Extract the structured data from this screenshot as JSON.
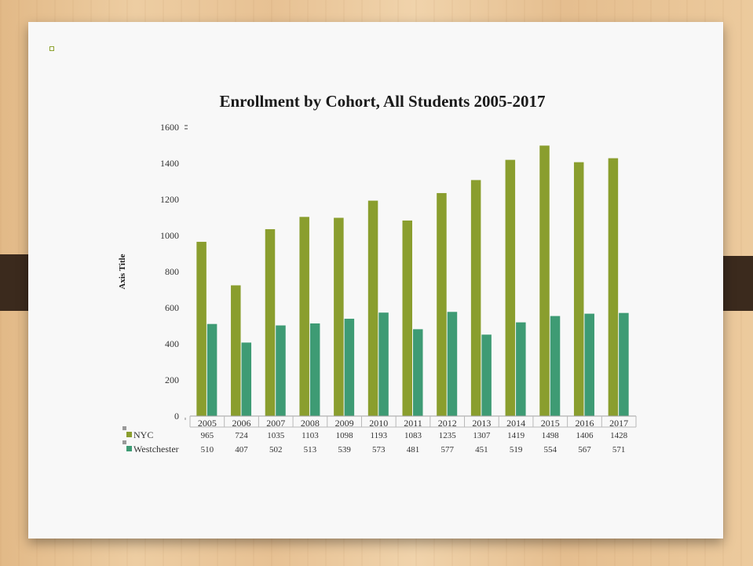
{
  "chart_data": {
    "type": "bar",
    "title": "Enrollment by Cohort, All Students 2005-2017",
    "xlabel": "",
    "ylabel": "Axis Title",
    "ylim": [
      0,
      1600
    ],
    "yticks": [
      "0",
      "200",
      "400",
      "600",
      "800",
      "1000",
      "1200",
      "1400",
      "1600"
    ],
    "categories": [
      "2005",
      "2006",
      "2007",
      "2008",
      "2009",
      "2010",
      "2011",
      "2012",
      "2013",
      "2014",
      "2015",
      "2016",
      "2017"
    ],
    "series": [
      {
        "name": "NYC",
        "color": "#8a9e2e",
        "values": [
          965,
          724,
          1035,
          1103,
          1098,
          1193,
          1083,
          1235,
          1307,
          1419,
          1498,
          1406,
          1428
        ]
      },
      {
        "name": "Westchester",
        "color": "#3e9b74",
        "values": [
          510,
          407,
          502,
          513,
          539,
          573,
          481,
          577,
          451,
          519,
          554,
          567,
          571
        ]
      }
    ],
    "grid": false,
    "legend": "data-table"
  }
}
